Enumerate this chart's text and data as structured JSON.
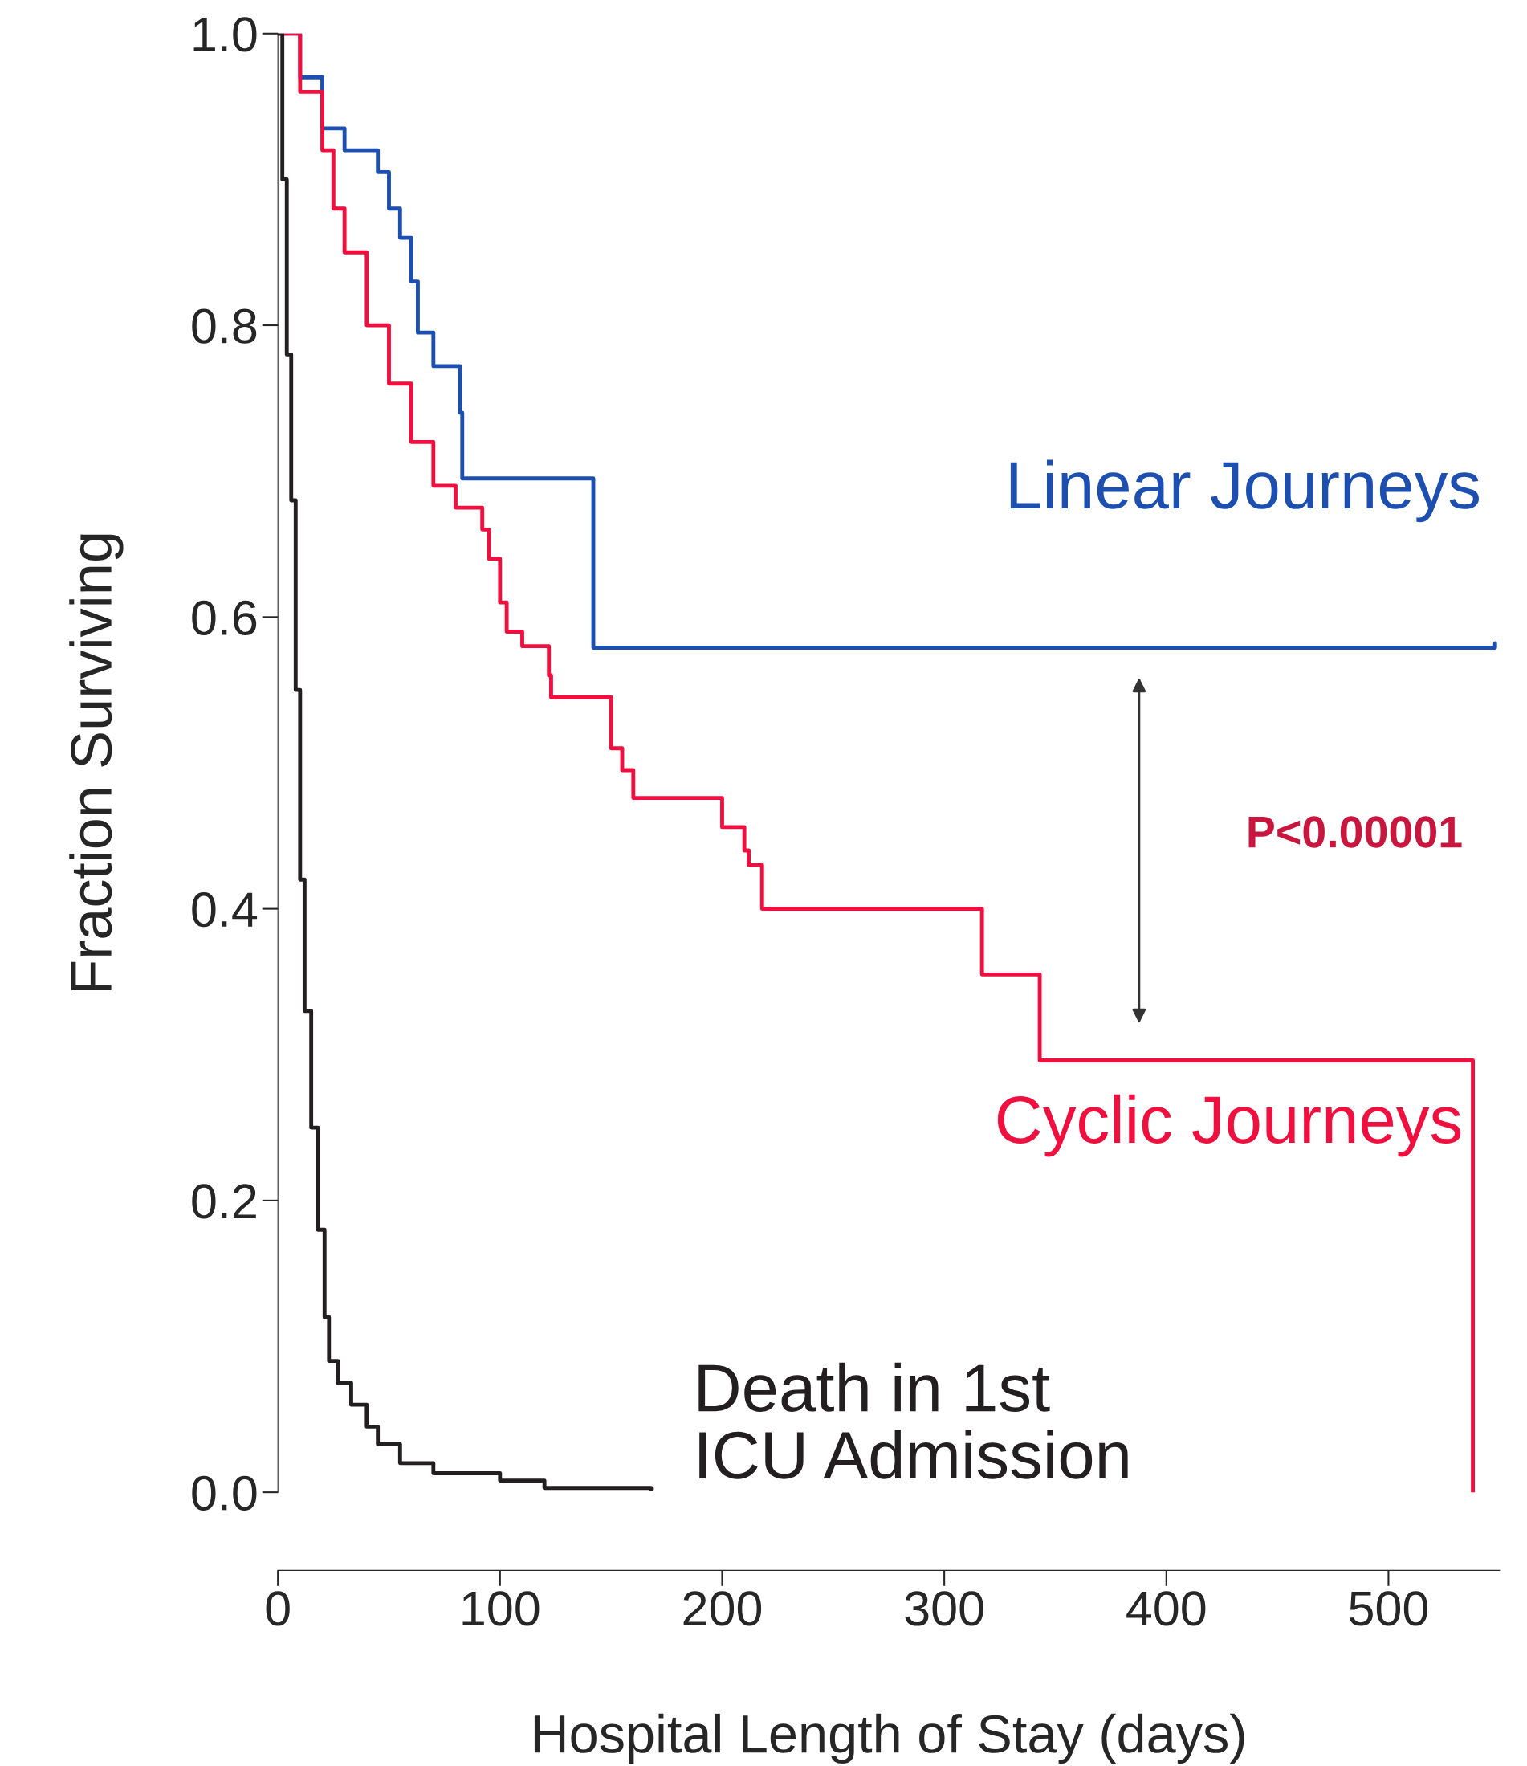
{
  "chart_data": {
    "type": "step",
    "xlabel": "Hospital Length of Stay (days)",
    "ylabel": "Fraction Surviving",
    "xlim": [
      0,
      550
    ],
    "ylim": [
      0,
      1.0
    ],
    "xticks": [
      0,
      100,
      200,
      300,
      400,
      500
    ],
    "yticks": [
      {
        "value": 0,
        "label": "0.0"
      },
      {
        "value": 0.2,
        "label": "0.2"
      },
      {
        "value": 0.4,
        "label": "0.4"
      },
      {
        "value": 0.6,
        "label": "0.6"
      },
      {
        "value": 0.8,
        "label": "0.8"
      },
      {
        "value": 1.0,
        "label": "1.0"
      }
    ],
    "grid": false,
    "legend": false,
    "line_style": "solid",
    "marker": "none",
    "series": [
      {
        "name": "Linear Journeys",
        "color": "#1d4fb0",
        "x": [
          0,
          10,
          20,
          30,
          45,
          50,
          55,
          60,
          63,
          70,
          82,
          83,
          142,
          548
        ],
        "values": [
          1.0,
          0.97,
          0.935,
          0.92,
          0.905,
          0.88,
          0.86,
          0.83,
          0.795,
          0.772,
          0.74,
          0.695,
          0.579,
          0.582
        ]
      },
      {
        "name": "Cyclic Journeys",
        "color": "#f0103f",
        "x": [
          0,
          10,
          20,
          25,
          30,
          40,
          50,
          60,
          70,
          80,
          92,
          95,
          100,
          103,
          110,
          122,
          123,
          150,
          155,
          160,
          200,
          210,
          212,
          218,
          317,
          343,
          538
        ],
        "values": [
          1.0,
          0.96,
          0.92,
          0.88,
          0.85,
          0.8,
          0.76,
          0.72,
          0.69,
          0.675,
          0.66,
          0.64,
          0.61,
          0.59,
          0.58,
          0.56,
          0.545,
          0.51,
          0.495,
          0.476,
          0.456,
          0.44,
          0.43,
          0.4,
          0.355,
          0.296,
          0.0
        ]
      },
      {
        "name": "Death in 1st\nICU Admission",
        "color": "#231f20",
        "x": [
          0,
          2,
          4,
          6,
          8,
          10,
          12,
          15,
          18,
          21,
          23,
          27,
          33,
          40,
          45,
          55,
          70,
          100,
          120,
          168
        ],
        "values": [
          1.0,
          0.9,
          0.78,
          0.68,
          0.55,
          0.42,
          0.33,
          0.25,
          0.18,
          0.12,
          0.09,
          0.075,
          0.06,
          0.045,
          0.033,
          0.02,
          0.013,
          0.008,
          0.003,
          0.002
        ]
      }
    ],
    "annotations": [
      "P<0.00001"
    ]
  }
}
